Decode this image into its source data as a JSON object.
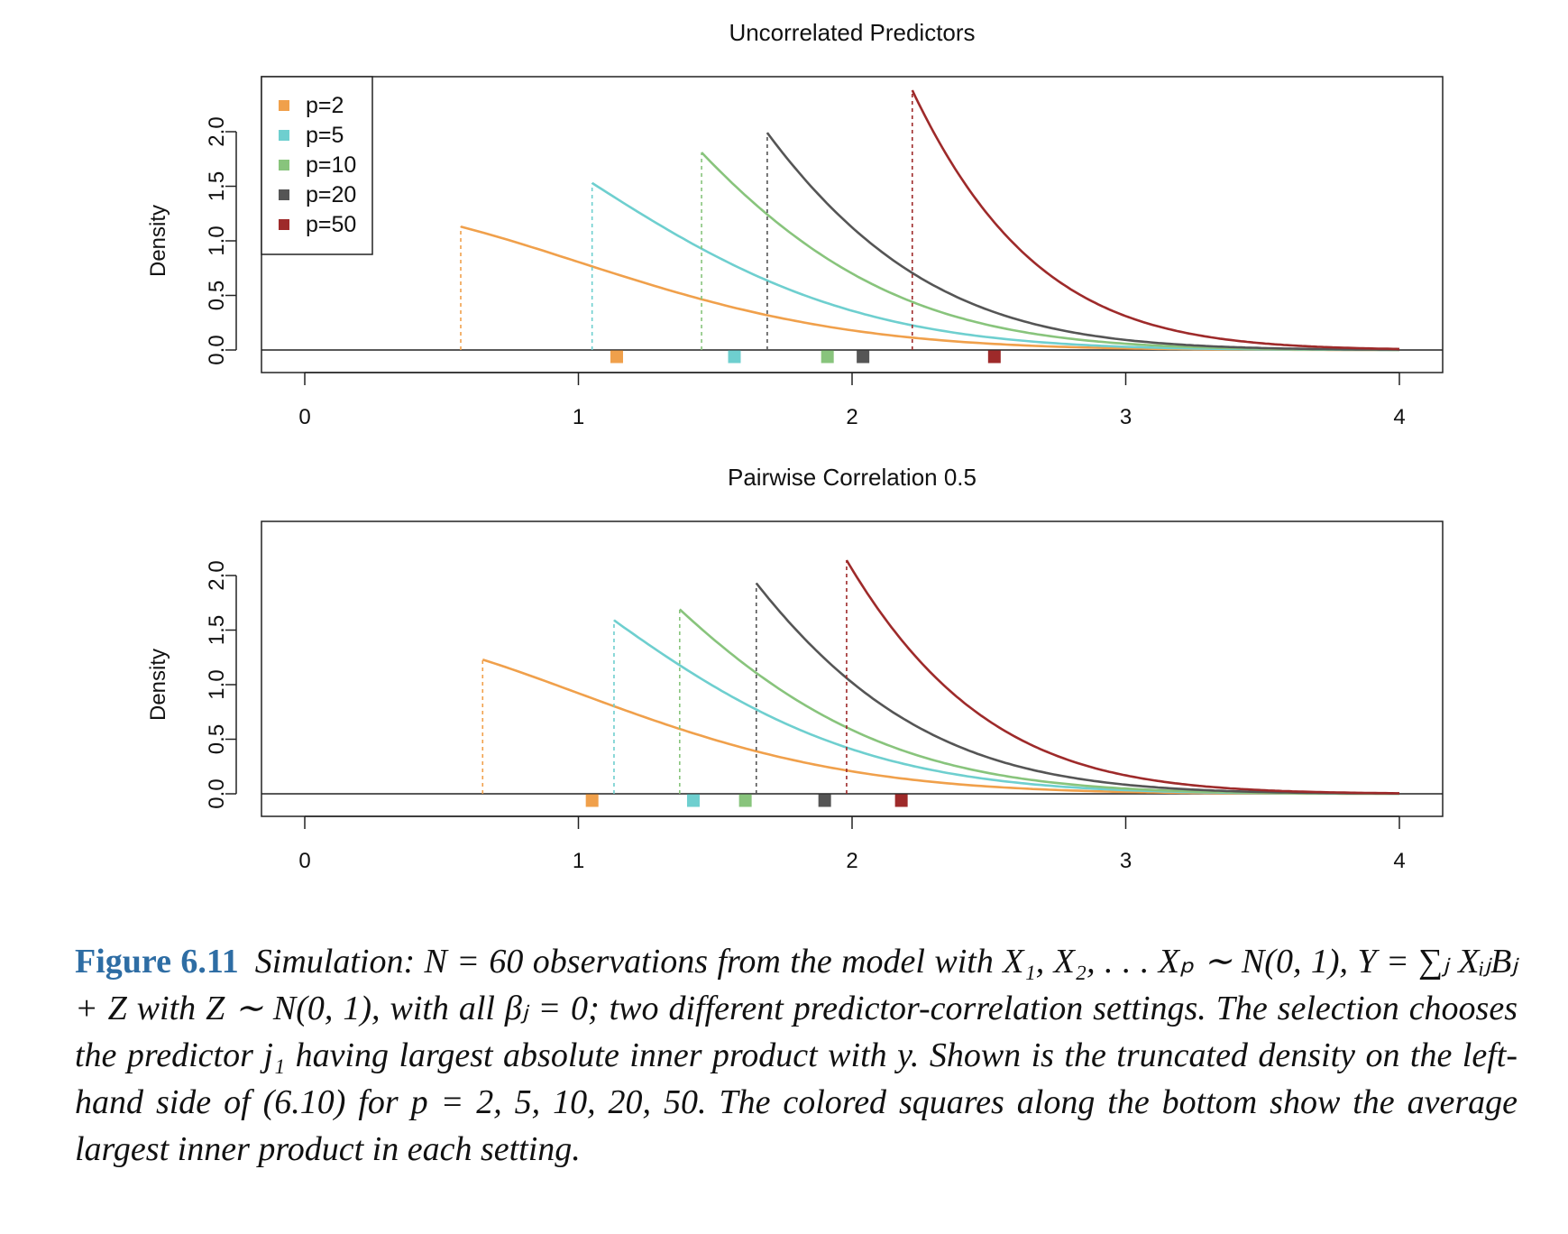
{
  "chart_data": [
    {
      "type": "line",
      "title": "Uncorrelated Predictors",
      "ylabel": "Density",
      "xlabel": "",
      "xlim": [
        0,
        4
      ],
      "ylim": [
        0,
        2.4
      ],
      "xticks": [
        "0",
        "1",
        "2",
        "3",
        "4"
      ],
      "yticks": [
        "0.0",
        "0.5",
        "1.0",
        "1.5",
        "2.0"
      ],
      "legend_position": "top-left",
      "grid": false,
      "series": [
        {
          "name": "p=2",
          "color": "#f0a04b",
          "cutoff": 0.57,
          "peak": 1.13,
          "mean_marker": 1.14
        },
        {
          "name": "p=5",
          "color": "#6ecfcf",
          "cutoff": 1.05,
          "peak": 1.53,
          "mean_marker": 1.57
        },
        {
          "name": "p=10",
          "color": "#88c47c",
          "cutoff": 1.45,
          "peak": 1.81,
          "mean_marker": 1.91
        },
        {
          "name": "p=20",
          "color": "#555555",
          "cutoff": 1.69,
          "peak": 1.99,
          "mean_marker": 2.04
        },
        {
          "name": "p=50",
          "color": "#9e2a2a",
          "cutoff": 2.22,
          "peak": 2.38,
          "mean_marker": 2.52
        }
      ]
    },
    {
      "type": "line",
      "title": "Pairwise Correlation 0.5",
      "ylabel": "Density",
      "xlabel": "",
      "xlim": [
        0,
        4
      ],
      "ylim": [
        0,
        2.4
      ],
      "xticks": [
        "0",
        "1",
        "2",
        "3",
        "4"
      ],
      "yticks": [
        "0.0",
        "0.5",
        "1.0",
        "1.5",
        "2.0"
      ],
      "grid": false,
      "series": [
        {
          "name": "p=2",
          "color": "#f0a04b",
          "cutoff": 0.65,
          "peak": 1.23,
          "mean_marker": 1.05
        },
        {
          "name": "p=5",
          "color": "#6ecfcf",
          "cutoff": 1.13,
          "peak": 1.59,
          "mean_marker": 1.42
        },
        {
          "name": "p=10",
          "color": "#88c47c",
          "cutoff": 1.37,
          "peak": 1.69,
          "mean_marker": 1.61
        },
        {
          "name": "p=20",
          "color": "#555555",
          "cutoff": 1.65,
          "peak": 1.93,
          "mean_marker": 1.9
        },
        {
          "name": "p=50",
          "color": "#9e2a2a",
          "cutoff": 1.98,
          "peak": 2.14,
          "mean_marker": 2.18
        }
      ]
    }
  ],
  "caption": {
    "label": "Figure 6.11",
    "text": "Simulation: N = 60 observations from the model with X₁, X₂, . . . Xₚ ∼ N(0, 1), Y = ∑ⱼ XᵢⱼBⱼ + Z with Z ∼ N(0, 1), with all βⱼ = 0; two different predictor-correlation settings. The selection chooses the predictor j₁ having largest absolute inner product with y. Shown is the truncated density on the left-hand side of (6.10) for p = 2, 5, 10, 20, 50. The colored squares along the bottom show the average largest inner product in each setting."
  }
}
